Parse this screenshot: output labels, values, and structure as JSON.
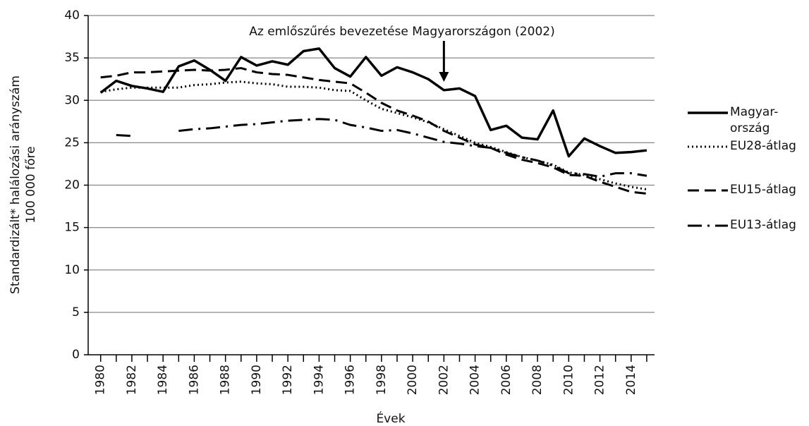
{
  "chart_data": {
    "type": "line",
    "annotation": "Az emlőszűrés bevezetése Magyarországon (2002)",
    "annotation_x": 2002,
    "xlabel": "Évek",
    "ylabel": [
      "Standardizált* halálozási arányszám",
      "100 000 főre"
    ],
    "x": [
      1980,
      1981,
      1982,
      1983,
      1984,
      1985,
      1986,
      1987,
      1988,
      1989,
      1990,
      1991,
      1992,
      1993,
      1994,
      1995,
      1996,
      1997,
      1998,
      1999,
      2000,
      2001,
      2002,
      2003,
      2004,
      2005,
      2006,
      2007,
      2008,
      2009,
      2010,
      2011,
      2012,
      2013,
      2014,
      2015
    ],
    "xlim": [
      1979.2,
      2015.5
    ],
    "xticks": [
      1980,
      1982,
      1984,
      1986,
      1988,
      1990,
      1992,
      1994,
      1996,
      1998,
      2000,
      2002,
      2004,
      2006,
      2008,
      2010,
      2012,
      2014
    ],
    "ylim": [
      0,
      40
    ],
    "yticks": [
      0,
      5,
      10,
      15,
      20,
      25,
      30,
      35,
      40
    ],
    "grid": true,
    "legend": "right",
    "series": [
      {
        "name": "Magyar-\nország",
        "color": "#000000",
        "style": "solid",
        "values": [
          30.9,
          32.3,
          31.7,
          31.4,
          31.0,
          34.0,
          34.7,
          33.6,
          32.3,
          35.1,
          34.1,
          34.6,
          34.2,
          35.8,
          36.1,
          33.8,
          32.8,
          35.1,
          32.9,
          33.9,
          33.3,
          32.5,
          31.2,
          31.4,
          30.5,
          26.5,
          27.0,
          25.6,
          25.4,
          28.8,
          23.4,
          25.5,
          24.6,
          23.8,
          23.9,
          24.1
        ]
      },
      {
        "name": "EU28-átlag",
        "color": "#000000",
        "style": "dotted",
        "values": [
          31.0,
          31.3,
          31.5,
          31.5,
          31.5,
          31.5,
          31.8,
          31.9,
          32.1,
          32.2,
          32.0,
          31.9,
          31.6,
          31.6,
          31.5,
          31.2,
          31.1,
          30.0,
          29.0,
          28.5,
          28.0,
          27.4,
          26.6,
          25.8,
          25.0,
          24.5,
          23.9,
          23.3,
          22.9,
          22.4,
          21.5,
          21.2,
          20.7,
          20.2,
          19.8,
          19.5
        ]
      },
      {
        "name": "EU15-átlag",
        "color": "#000000",
        "style": "dashed",
        "values": [
          32.7,
          32.9,
          33.3,
          33.3,
          33.4,
          33.5,
          33.6,
          33.5,
          33.6,
          33.8,
          33.3,
          33.1,
          33.0,
          32.7,
          32.4,
          32.2,
          32.0,
          30.9,
          29.7,
          28.8,
          28.2,
          27.5,
          26.4,
          25.6,
          24.8,
          24.4,
          23.6,
          23.0,
          22.6,
          22.1,
          21.2,
          21.1,
          20.4,
          19.8,
          19.2,
          19.0
        ]
      },
      {
        "name": "EU13-átlag",
        "color": "#000000",
        "style": "dashdot",
        "values": [
          null,
          25.9,
          25.8,
          null,
          null,
          26.4,
          26.6,
          26.7,
          26.9,
          27.1,
          27.2,
          27.4,
          27.6,
          27.7,
          27.8,
          27.7,
          27.1,
          26.8,
          26.4,
          26.5,
          26.1,
          25.6,
          25.1,
          24.9,
          24.6,
          24.4,
          23.8,
          23.3,
          22.9,
          22.3,
          21.4,
          21.3,
          21.0,
          21.4,
          21.4,
          21.1
        ]
      }
    ]
  }
}
